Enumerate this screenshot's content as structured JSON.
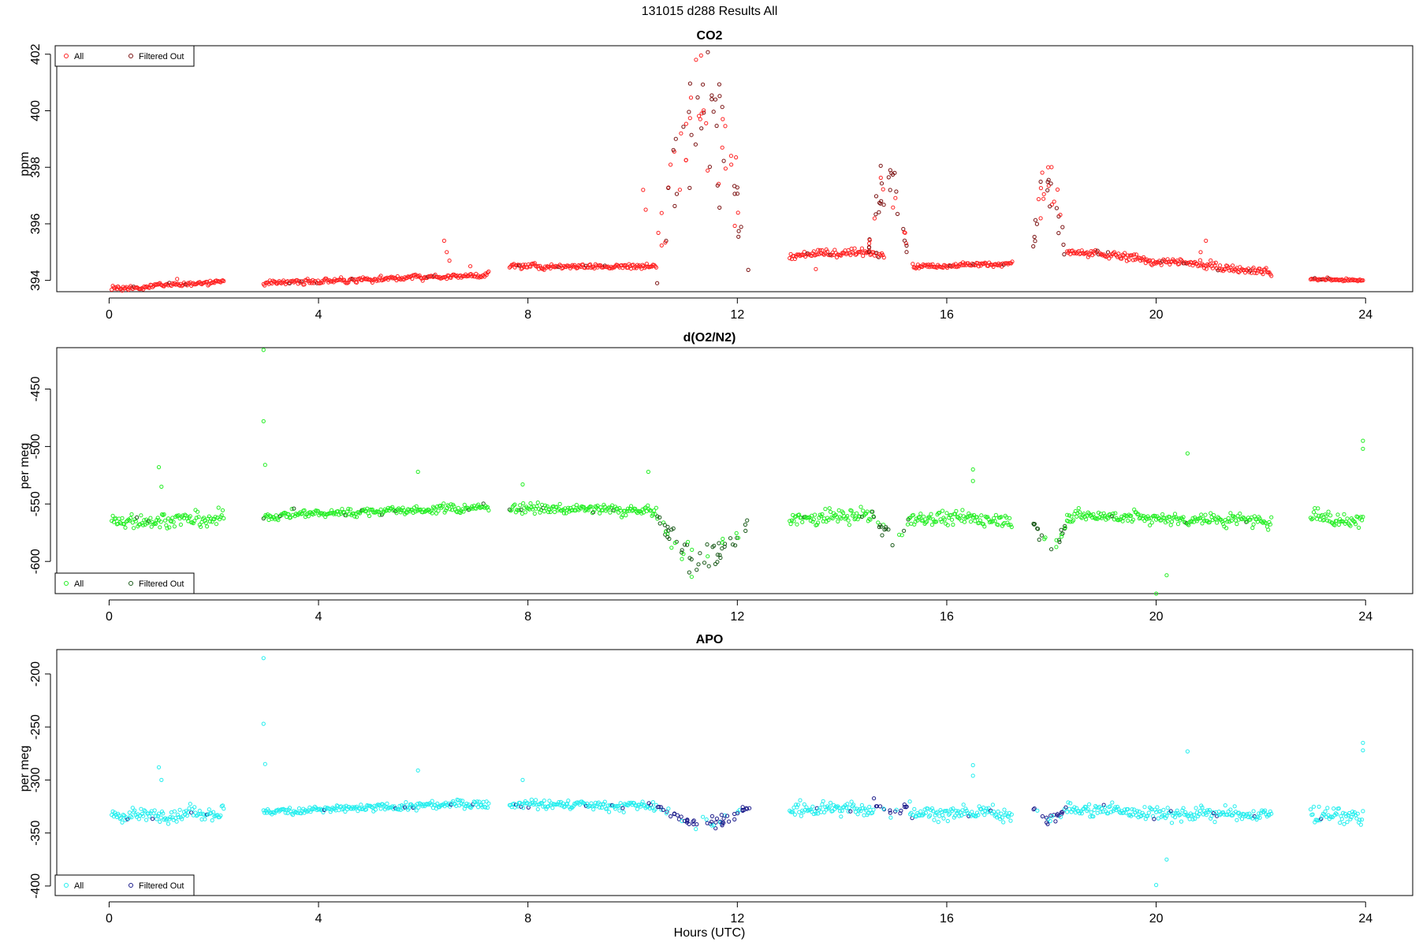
{
  "figure": {
    "title": "131015   d288   Results All",
    "xlabel": "Hours (UTC)"
  },
  "chart_data": [
    {
      "type": "scatter",
      "title": "CO2",
      "ylabel": "ppm",
      "xlim": [
        -1.0,
        24.9
      ],
      "ylim": [
        393.6,
        402.3
      ],
      "xticks": [
        0,
        4,
        8,
        12,
        16,
        20,
        24
      ],
      "yticks": [
        394,
        396,
        398,
        400,
        402
      ],
      "legend": {
        "position": "top-left",
        "entries": [
          "All",
          "Filtered Out"
        ]
      },
      "colors": {
        "all": "#ff2020",
        "filtered": "#7a1010"
      },
      "segments": [
        {
          "x0": 0.05,
          "x1": 2.2,
          "y0": 393.7,
          "y1": 393.95,
          "noise": 0.1,
          "spikes": [
            [
              1.3,
              394.05
            ]
          ]
        },
        {
          "x0": 2.95,
          "x1": 7.25,
          "y0": 393.9,
          "y1": 394.2,
          "noise": 0.12,
          "spikes": [
            [
              6.4,
              395.4
            ],
            [
              6.45,
              395.0
            ],
            [
              6.5,
              394.7
            ],
            [
              6.9,
              394.5
            ]
          ]
        },
        {
          "x0": 7.65,
          "x1": 10.45,
          "y0": 394.5,
          "y1": 394.5,
          "noise": 0.12,
          "spikes": [
            [
              10.2,
              397.2
            ],
            [
              10.25,
              396.5
            ]
          ]
        },
        {
          "x0": 13.0,
          "x1": 14.8,
          "y0": 394.9,
          "y1": 395.0,
          "noise": 0.2,
          "spikes": [
            [
              13.5,
              394.4
            ]
          ]
        },
        {
          "x0": 15.35,
          "x1": 17.25,
          "y0": 394.5,
          "y1": 394.6,
          "noise": 0.1,
          "spikes": []
        },
        {
          "x0": 18.3,
          "x1": 22.2,
          "y0": 395.0,
          "y1": 394.3,
          "noise": 0.2,
          "spikes": [
            [
              20.95,
              395.4
            ],
            [
              20.85,
              395.0
            ]
          ]
        },
        {
          "x0": 22.95,
          "x1": 23.95,
          "y0": 394.05,
          "y1": 394.0,
          "noise": 0.06,
          "spikes": []
        }
      ],
      "events": [
        {
          "x0": 10.45,
          "x1": 12.25,
          "base": 394.5,
          "peak": 401.9,
          "spread": 3.2,
          "n": 70,
          "filtered": 0.5
        },
        {
          "x0": 14.5,
          "x1": 15.25,
          "base": 395.0,
          "peak": 398.8,
          "spread": 1.0,
          "n": 35,
          "filtered": 0.6
        },
        {
          "x0": 17.65,
          "x1": 18.25,
          "base": 395.0,
          "peak": 398.4,
          "spread": 1.6,
          "n": 30,
          "filtered": 0.6
        }
      ]
    },
    {
      "type": "scatter",
      "title": "d(O2/N2)",
      "ylabel": "per meg",
      "xlim": [
        -1.0,
        24.9
      ],
      "ylim": [
        -628,
        -414
      ],
      "xticks": [
        0,
        4,
        8,
        12,
        16,
        20,
        24
      ],
      "yticks": [
        -450,
        -500,
        -550,
        -600
      ],
      "legend": {
        "position": "bottom-left",
        "entries": [
          "All",
          "Filtered Out"
        ]
      },
      "colors": {
        "all": "#22ee22",
        "filtered": "#1a5a1a"
      },
      "segments": [
        {
          "x0": 0.05,
          "x1": 2.2,
          "y0": -565,
          "y1": -563,
          "noise": 9,
          "spikes": [
            [
              0.95,
              -518
            ],
            [
              1.0,
              -535
            ]
          ]
        },
        {
          "x0": 2.95,
          "x1": 7.25,
          "y0": -560,
          "y1": -553,
          "noise": 5,
          "spikes": [
            [
              2.95,
              -416
            ],
            [
              2.95,
              -478
            ],
            [
              2.98,
              -516
            ],
            [
              5.9,
              -522
            ]
          ]
        },
        {
          "x0": 7.65,
          "x1": 10.45,
          "y0": -553,
          "y1": -556,
          "noise": 6,
          "spikes": [
            [
              7.9,
              -533
            ],
            [
              10.3,
              -522
            ]
          ]
        },
        {
          "x0": 13.0,
          "x1": 14.6,
          "y0": -563,
          "y1": -560,
          "noise": 8,
          "spikes": []
        },
        {
          "x0": 15.3,
          "x1": 17.25,
          "y0": -562,
          "y1": -563,
          "noise": 8,
          "spikes": [
            [
              16.5,
              -520
            ],
            [
              16.5,
              -530
            ]
          ]
        },
        {
          "x0": 18.3,
          "x1": 22.2,
          "y0": -560,
          "y1": -565,
          "noise": 8,
          "spikes": [
            [
              20.6,
              -506
            ],
            [
              20.0,
              -628
            ],
            [
              20.2,
              -612
            ]
          ]
        },
        {
          "x0": 22.95,
          "x1": 23.95,
          "y0": -560,
          "y1": -566,
          "noise": 10,
          "spikes": [
            [
              23.95,
              -495
            ],
            [
              23.95,
              -502
            ]
          ]
        }
      ],
      "events": [
        {
          "x0": 10.45,
          "x1": 12.25,
          "base": -560,
          "peak": -616,
          "spread": 12,
          "n": 60,
          "filtered": 0.7
        },
        {
          "x0": 14.6,
          "x1": 15.3,
          "base": -562,
          "peak": -585,
          "spread": 8,
          "n": 18,
          "filtered": 0.6
        },
        {
          "x0": 17.65,
          "x1": 18.3,
          "base": -565,
          "peak": -593,
          "spread": 8,
          "n": 22,
          "filtered": 0.6
        }
      ]
    },
    {
      "type": "scatter",
      "title": "APO",
      "ylabel": "per meg",
      "xlim": [
        -1.0,
        24.9
      ],
      "ylim": [
        -409,
        -177
      ],
      "xticks": [
        0,
        4,
        8,
        12,
        16,
        20,
        24
      ],
      "yticks": [
        -200,
        -250,
        -300,
        -350,
        -400
      ],
      "legend": {
        "position": "bottom-left",
        "entries": [
          "All",
          "Filtered Out"
        ]
      },
      "colors": {
        "all": "#22eeee",
        "filtered": "#1a1a8a"
      },
      "segments": [
        {
          "x0": 0.05,
          "x1": 2.2,
          "y0": -334,
          "y1": -330,
          "noise": 9,
          "spikes": [
            [
              0.95,
              -288
            ],
            [
              1.0,
              -300
            ]
          ]
        },
        {
          "x0": 2.95,
          "x1": 7.25,
          "y0": -330,
          "y1": -322,
          "noise": 5,
          "spikes": [
            [
              2.95,
              -185
            ],
            [
              2.95,
              -247
            ],
            [
              2.98,
              -285
            ],
            [
              5.9,
              -291
            ]
          ]
        },
        {
          "x0": 7.65,
          "x1": 10.45,
          "y0": -322,
          "y1": -325,
          "noise": 6,
          "spikes": [
            [
              7.9,
              -300
            ]
          ]
        },
        {
          "x0": 13.0,
          "x1": 14.6,
          "y0": -328,
          "y1": -327,
          "noise": 9,
          "spikes": []
        },
        {
          "x0": 15.3,
          "x1": 17.25,
          "y0": -331,
          "y1": -331,
          "noise": 8,
          "spikes": [
            [
              16.5,
              -286
            ],
            [
              16.5,
              -296
            ]
          ]
        },
        {
          "x0": 18.3,
          "x1": 22.2,
          "y0": -328,
          "y1": -333,
          "noise": 9,
          "spikes": [
            [
              20.6,
              -273
            ],
            [
              20.0,
              -399
            ],
            [
              20.2,
              -375
            ]
          ]
        },
        {
          "x0": 22.95,
          "x1": 23.95,
          "y0": -330,
          "y1": -336,
          "noise": 10,
          "spikes": [
            [
              23.95,
              -265
            ],
            [
              23.95,
              -272
            ]
          ]
        }
      ],
      "events": [
        {
          "x0": 10.45,
          "x1": 12.25,
          "base": -325,
          "peak": -347,
          "spread": 8,
          "n": 60,
          "filtered": 0.8
        },
        {
          "x0": 14.6,
          "x1": 15.3,
          "base": -320,
          "peak": -335,
          "spread": 10,
          "n": 18,
          "filtered": 0.8
        },
        {
          "x0": 17.65,
          "x1": 18.3,
          "base": -328,
          "peak": -340,
          "spread": 9,
          "n": 22,
          "filtered": 0.7
        }
      ]
    }
  ]
}
